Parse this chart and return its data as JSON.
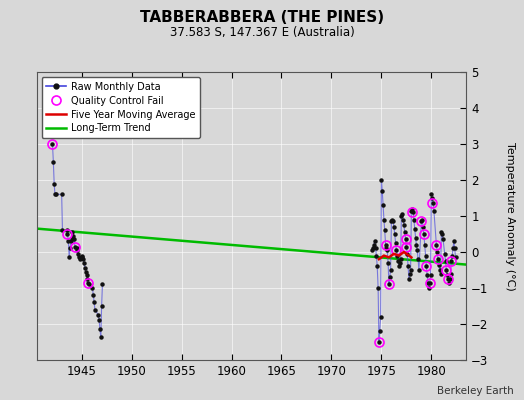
{
  "title": "TABBERABBERA (THE PINES)",
  "subtitle": "37.583 S, 147.367 E (Australia)",
  "ylabel": "Temperature Anomaly (°C)",
  "credit": "Berkeley Earth",
  "xlim": [
    1940.5,
    1983.5
  ],
  "ylim": [
    -3,
    5
  ],
  "xticks": [
    1945,
    1950,
    1955,
    1960,
    1965,
    1970,
    1975,
    1980
  ],
  "yticks": [
    -3,
    -2,
    -1,
    0,
    1,
    2,
    3,
    4,
    5
  ],
  "bg_color": "#d8d8d8",
  "plot_bg": "#d8d8d8",
  "raw_color": "#4444dd",
  "raw_dot_color": "#111111",
  "qc_color": "#ff00ff",
  "moving_avg_color": "#dd0000",
  "trend_color": "#00bb00",
  "cluster1": {
    "x": [
      1942.08,
      1942.17,
      1942.25,
      1942.33,
      1942.42,
      1943.0,
      1943.08,
      1943.5,
      1943.58,
      1943.67,
      1943.75,
      1943.83,
      1943.92,
      1944.0,
      1944.08,
      1944.17,
      1944.25,
      1944.33,
      1944.5,
      1944.58,
      1944.67,
      1944.75,
      1944.83,
      1945.0,
      1945.08,
      1945.17,
      1945.25,
      1945.33,
      1945.42,
      1945.5,
      1945.58,
      1945.67,
      1945.75,
      1946.08,
      1946.17,
      1946.25,
      1946.33,
      1946.67,
      1946.75,
      1946.83,
      1946.92,
      1947.0,
      1947.08
    ],
    "y": [
      3.0,
      2.5,
      1.9,
      1.6,
      1.6,
      1.6,
      0.6,
      0.6,
      0.5,
      0.3,
      -0.15,
      0.1,
      0.3,
      0.4,
      0.55,
      0.45,
      0.35,
      0.15,
      0.1,
      0.05,
      -0.05,
      -0.15,
      -0.2,
      -0.1,
      -0.15,
      -0.2,
      -0.3,
      -0.45,
      -0.55,
      -0.65,
      -0.75,
      -0.85,
      -0.9,
      -1.0,
      -1.2,
      -1.4,
      -1.6,
      -1.75,
      -1.9,
      -2.15,
      -2.35,
      -1.5,
      -0.9
    ]
  },
  "cluster2": {
    "x": [
      1974.08,
      1974.17,
      1974.25,
      1974.33,
      1974.42,
      1974.5,
      1974.58,
      1974.67,
      1974.75,
      1974.83,
      1974.92,
      1975.0,
      1975.08,
      1975.17,
      1975.25,
      1975.33,
      1975.42,
      1975.5,
      1975.58,
      1975.67,
      1975.75,
      1975.83,
      1975.92,
      1976.0,
      1976.08,
      1976.17,
      1976.25,
      1976.33,
      1976.42,
      1976.5,
      1976.58,
      1976.67,
      1976.75,
      1976.83,
      1976.92,
      1977.0,
      1977.08,
      1977.17,
      1977.25,
      1977.33,
      1977.42,
      1977.5,
      1977.58,
      1977.67,
      1977.75,
      1977.83,
      1977.92,
      1978.0,
      1978.08,
      1978.17,
      1978.25,
      1978.33,
      1978.42,
      1978.5,
      1978.58,
      1978.67,
      1978.75,
      1979.0,
      1979.08,
      1979.17,
      1979.25,
      1979.33,
      1979.42,
      1979.5,
      1979.58,
      1979.67,
      1979.75,
      1979.83,
      1979.92,
      1980.0,
      1980.08,
      1980.17,
      1980.25,
      1980.5,
      1980.58,
      1980.67,
      1980.75,
      1980.83,
      1980.92,
      1981.0,
      1981.08,
      1981.17,
      1981.33,
      1981.42,
      1981.5,
      1981.58,
      1981.67,
      1981.75,
      1981.83,
      1981.92,
      1982.0,
      1982.08,
      1982.17,
      1982.25,
      1982.33,
      1982.42
    ],
    "y": [
      0.05,
      0.1,
      0.2,
      0.3,
      0.1,
      -0.1,
      -0.4,
      -1.0,
      -2.5,
      -2.2,
      -1.8,
      2.0,
      1.7,
      1.3,
      0.9,
      0.6,
      0.2,
      0.1,
      0.05,
      -0.3,
      -0.9,
      -0.7,
      -0.5,
      0.85,
      0.9,
      0.85,
      0.7,
      0.5,
      0.25,
      0.05,
      -0.1,
      -0.25,
      -0.4,
      -0.3,
      -0.2,
      1.0,
      1.05,
      0.9,
      0.75,
      0.55,
      0.35,
      0.15,
      -0.05,
      -0.4,
      -0.75,
      -0.6,
      -0.5,
      1.15,
      1.2,
      1.1,
      0.9,
      0.65,
      0.4,
      0.2,
      0.05,
      -0.2,
      -0.5,
      0.85,
      0.9,
      0.7,
      0.5,
      0.2,
      -0.1,
      -0.4,
      -0.65,
      -0.85,
      -1.0,
      -0.85,
      -0.65,
      1.6,
      1.5,
      1.35,
      1.15,
      0.2,
      0.0,
      -0.2,
      -0.35,
      -0.5,
      -0.6,
      0.55,
      0.5,
      0.35,
      -0.05,
      -0.25,
      -0.5,
      -0.65,
      -0.75,
      -0.85,
      -0.75,
      -0.6,
      -0.25,
      -0.1,
      0.1,
      0.3,
      0.1,
      -0.15
    ]
  },
  "qc_fail": {
    "x": [
      1942.08,
      1943.58,
      1944.33,
      1945.67,
      1974.75,
      1975.42,
      1975.75,
      1976.5,
      1977.42,
      1977.5,
      1978.08,
      1979.0,
      1979.25,
      1979.5,
      1980.08,
      1980.5,
      1980.67,
      1981.5,
      1981.67,
      1982.0,
      1979.83
    ],
    "y": [
      3.0,
      0.5,
      0.15,
      -0.85,
      -2.5,
      0.2,
      -0.9,
      0.05,
      0.35,
      0.15,
      1.1,
      0.85,
      0.5,
      -0.4,
      1.35,
      0.2,
      -0.2,
      -0.5,
      -0.75,
      -0.25,
      -0.85
    ]
  },
  "moving_avg": {
    "x": [
      1974.75,
      1975.25,
      1975.75,
      1976.25,
      1976.75,
      1977.0,
      1977.25,
      1977.75,
      1978.0
    ],
    "y": [
      -0.2,
      -0.1,
      -0.15,
      -0.05,
      -0.1,
      -0.05,
      0.0,
      -0.1,
      -0.15
    ]
  },
  "trend": {
    "x": [
      1940.5,
      1983.5
    ],
    "y": [
      0.65,
      -0.35
    ]
  }
}
